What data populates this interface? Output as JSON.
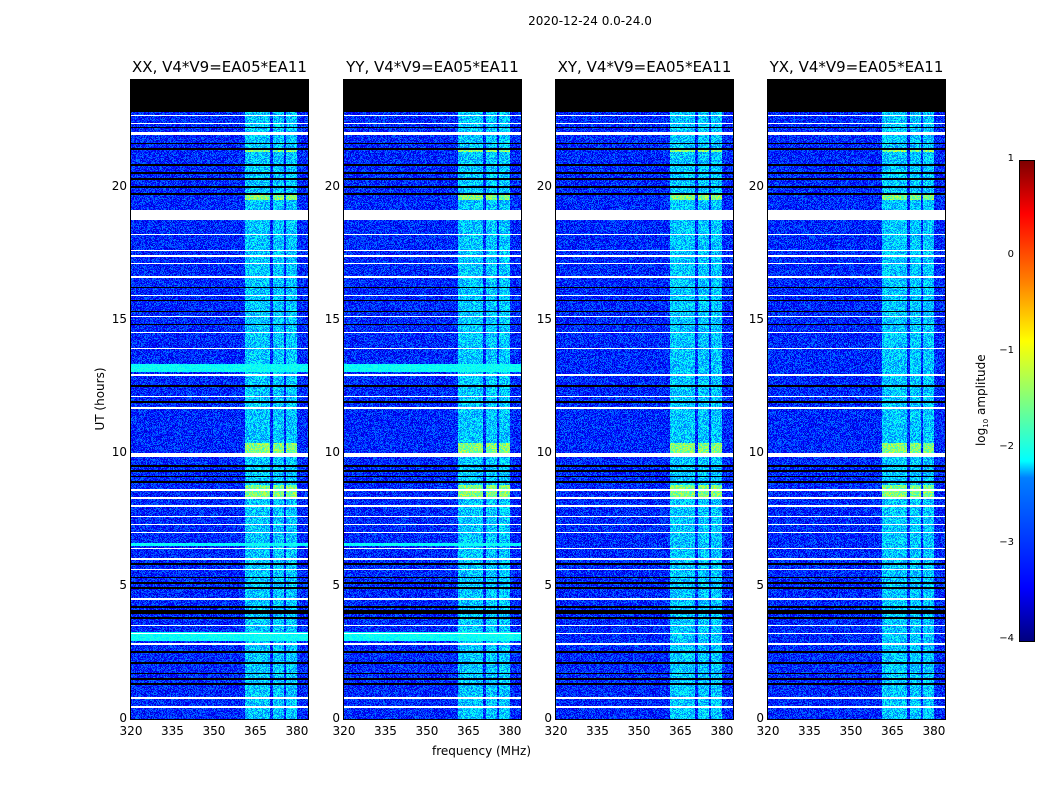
{
  "figure": {
    "suptitle": "2020-12-24 0.0-24.0",
    "xlabel": "frequency (MHz)",
    "ylabel": "UT (hours)",
    "colorbar_label": "log10 amplitude",
    "colorbar_label_main": "log",
    "colorbar_label_sub": "10",
    "colorbar_label_rest": " amplitude"
  },
  "chart_data": {
    "type": "heatmap",
    "panels": [
      {
        "title": "XX, V4*V9=EA05*EA11",
        "strong_bands": true
      },
      {
        "title": "YY, V4*V9=EA05*EA11",
        "strong_bands": true
      },
      {
        "title": "XY, V4*V9=EA05*EA11",
        "strong_bands": false
      },
      {
        "title": "YX, V4*V9=EA05*EA11",
        "strong_bands": false
      }
    ],
    "xlim": [
      320,
      384
    ],
    "ylim": [
      0,
      24
    ],
    "xticks": [
      "320",
      "335",
      "350",
      "365",
      "380"
    ],
    "xtick_values": [
      320,
      335,
      350,
      365,
      380
    ],
    "yticks": [
      "0",
      "5",
      "10",
      "15",
      "20"
    ],
    "ytick_values": [
      0,
      5,
      10,
      15,
      20
    ],
    "clim": [
      -4,
      1
    ],
    "cticks": [
      "−4",
      "−3",
      "−2",
      "−1",
      "0",
      "1"
    ],
    "ctick_values": [
      -4,
      -3,
      -2,
      -1,
      0,
      1
    ],
    "colormap": "jet",
    "no_data_above_hour": 22.8,
    "background_log_amplitude": -3.2,
    "rfi_bands_mhz": [
      [
        361,
        366
      ],
      [
        366,
        370
      ],
      [
        371,
        375
      ],
      [
        376,
        380
      ]
    ],
    "rfi_log_amplitude": -2.4,
    "flagged_white_hours": [
      [
        22.65,
        22.72
      ],
      [
        22.35,
        22.42
      ],
      [
        21.95,
        22.08
      ],
      [
        18.75,
        19.15
      ],
      [
        18.18,
        18.24
      ],
      [
        17.58,
        17.64
      ],
      [
        17.38,
        17.44
      ],
      [
        17.1,
        17.16
      ],
      [
        16.6,
        16.66
      ],
      [
        15.9,
        15.96
      ],
      [
        15.1,
        15.16
      ],
      [
        14.5,
        14.56
      ],
      [
        13.9,
        13.96
      ],
      [
        12.9,
        12.98
      ],
      [
        12.1,
        12.16
      ],
      [
        11.68,
        11.74
      ],
      [
        9.85,
        10.0
      ],
      [
        8.6,
        8.66
      ],
      [
        8.3,
        8.36
      ],
      [
        8.0,
        8.06
      ],
      [
        7.6,
        7.66
      ],
      [
        7.3,
        7.36
      ],
      [
        7.0,
        7.06
      ],
      [
        6.4,
        6.46
      ],
      [
        6.0,
        6.06
      ],
      [
        5.6,
        5.66
      ],
      [
        4.5,
        4.56
      ],
      [
        3.5,
        3.56
      ],
      [
        3.2,
        3.26
      ],
      [
        2.8,
        2.86
      ],
      [
        0.76,
        0.84
      ],
      [
        0.45,
        0.52
      ]
    ],
    "flagged_black_hours": [
      [
        22.2,
        22.26
      ],
      [
        21.6,
        21.66
      ],
      [
        21.4,
        21.46
      ],
      [
        20.8,
        20.86
      ],
      [
        20.5,
        20.56
      ],
      [
        20.28,
        20.34
      ],
      [
        19.98,
        20.04
      ],
      [
        19.7,
        19.76
      ],
      [
        16.2,
        16.26
      ],
      [
        15.7,
        15.76
      ],
      [
        15.3,
        15.36
      ],
      [
        14.8,
        14.86
      ],
      [
        12.5,
        12.56
      ],
      [
        11.9,
        11.96
      ],
      [
        9.5,
        9.56
      ],
      [
        9.3,
        9.36
      ],
      [
        9.1,
        9.16
      ],
      [
        8.9,
        8.96
      ],
      [
        5.8,
        5.86
      ],
      [
        5.3,
        5.36
      ],
      [
        5.1,
        5.16
      ],
      [
        4.9,
        4.96
      ],
      [
        4.2,
        4.26
      ],
      [
        3.95,
        4.1
      ],
      [
        3.78,
        3.84
      ],
      [
        2.5,
        2.56
      ],
      [
        2.1,
        2.16
      ],
      [
        1.7,
        1.76
      ],
      [
        1.5,
        1.56
      ],
      [
        1.3,
        1.36
      ]
    ],
    "bright_rows_hours": [
      [
        13.05,
        13.35
      ],
      [
        6.5,
        6.62
      ],
      [
        2.95,
        3.3
      ]
    ],
    "bright_rows_log_amplitude": -2.1,
    "rfi_bursts_hours": [
      [
        21.3,
        21.45
      ],
      [
        19.5,
        19.75
      ],
      [
        10.0,
        10.4
      ],
      [
        8.3,
        8.8
      ]
    ]
  }
}
